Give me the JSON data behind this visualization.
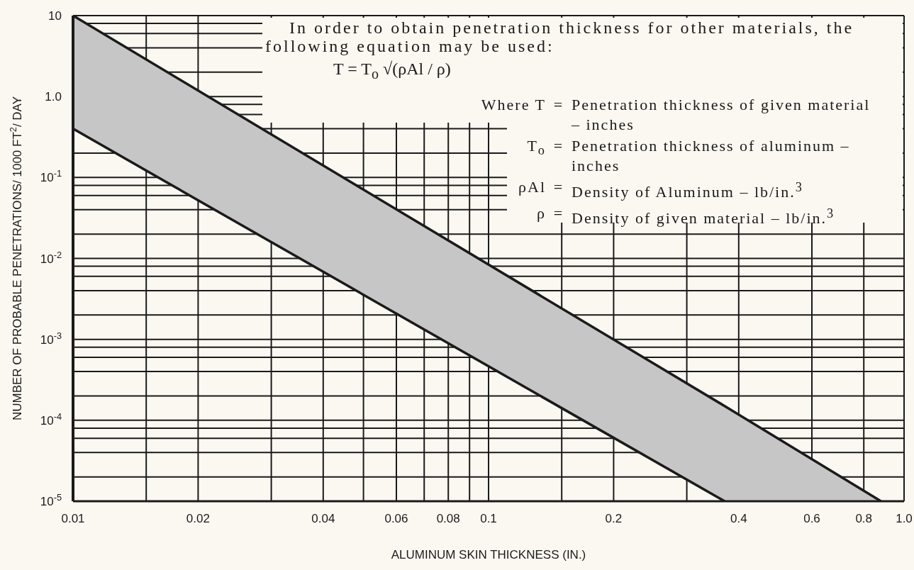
{
  "chart_data": {
    "type": "line",
    "xlabel": "ALUMINUM SKIN THICKNESS (IN.)",
    "ylabel": "NUMBER OF PROBABLE PENETRATIONS/ 1000 FT$^{2}$/ DAY",
    "log": "xy",
    "grid": true,
    "xlim": [
      0.01,
      1
    ],
    "xticks": [
      0.01,
      {
        "value": 0.015,
        "label": null
      },
      0.02,
      {
        "value": 0.03,
        "label": null
      },
      0.04,
      {
        "value": 0.05,
        "label": null
      },
      0.06,
      {
        "value": 0.07,
        "label": null
      },
      0.08,
      {
        "value": 0.09,
        "label": null
      },
      0.1,
      {
        "value": 0.15,
        "label": null
      },
      0.2,
      {
        "value": 0.3,
        "label": null
      },
      0.4,
      0.6,
      0.8,
      {
        "value": 1,
        "label": "1.0"
      }
    ],
    "ylim": [
      1e-05,
      10
    ],
    "yticks": [
      {
        "value": 1e-05,
        "label": "10$^{-5}$"
      },
      {
        "value": 2e-05,
        "label": null
      },
      {
        "value": 4e-05,
        "label": null
      },
      {
        "value": 6e-05,
        "label": null
      },
      {
        "value": 8e-05,
        "label": null
      },
      {
        "value": 0.0001,
        "label": "10$^{-4}$"
      },
      {
        "value": 0.0002,
        "label": null
      },
      {
        "value": 0.0004,
        "label": null
      },
      {
        "value": 0.0006,
        "label": null
      },
      {
        "value": 0.0008,
        "label": null
      },
      {
        "value": 0.001,
        "label": "10$^{-3}$"
      },
      {
        "value": 0.002,
        "label": null
      },
      {
        "value": 0.004,
        "label": null
      },
      {
        "value": 0.006,
        "label": null
      },
      {
        "value": 0.008,
        "label": null
      },
      {
        "value": 0.01,
        "label": "10$^{-2}$"
      },
      {
        "value": 0.02,
        "label": null
      },
      {
        "value": 0.04,
        "label": null
      },
      {
        "value": 0.06,
        "label": null
      },
      {
        "value": 0.08,
        "label": null
      },
      {
        "value": 0.1,
        "label": "10$^{-1}$"
      },
      {
        "value": 0.2,
        "label": null
      },
      {
        "value": 0.4,
        "label": null
      },
      {
        "value": 0.6,
        "label": null
      },
      {
        "value": 0.8,
        "label": null
      },
      {
        "value": 1,
        "label": "1.0"
      },
      {
        "value": 2,
        "label": null
      },
      {
        "value": 4,
        "label": null
      },
      {
        "value": 6,
        "label": null
      },
      {
        "value": 8,
        "label": null
      },
      10
    ],
    "series": [
      {
        "color": "#1a1a1a",
        "x": [
          0.01,
          0.37,
          0.88
        ],
        "values": [
          10,
          0.00015,
          1e-05
        ],
        "lower": [
          0.4,
          1e-05,
          1e-05
        ],
        "upper": [
          10,
          0.00015,
          1e-05
        ]
      },
      {
        "color": "#1a1a1a",
        "x": [
          0.01,
          0.37
        ],
        "values": [
          0.4,
          1e-05
        ]
      }
    ],
    "annotations": [
      "In order to obtain penetration thickness for other materials, the following equation may be used:",
      "T = T$_{o}$ √(ρAl / ρ)",
      "Where T = Penetration thickness of given material – inches",
      "T$_{o}$ = Penetration thickness of aluminum – inches",
      "ρAl = Density of Aluminum – lb/in.$^{3}$",
      "ρ = Density of given material – lb/in.$^{3}$"
    ]
  }
}
